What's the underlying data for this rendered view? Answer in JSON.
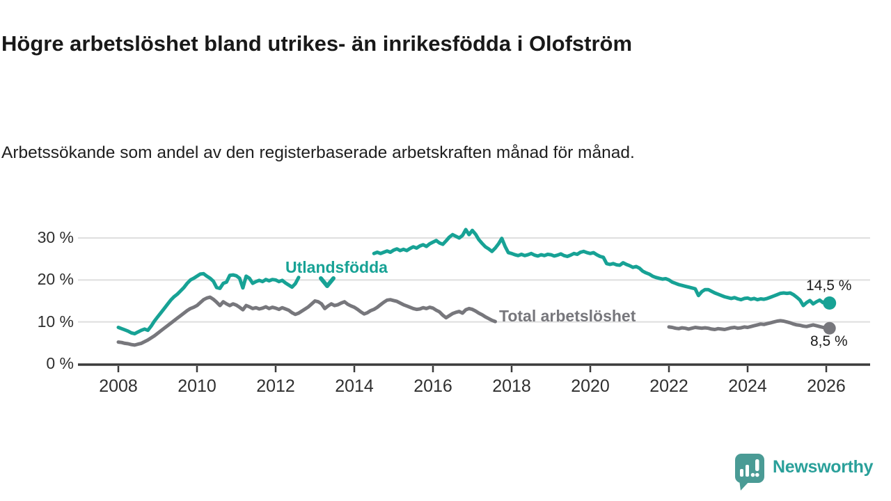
{
  "header": {
    "title": "Högre arbetslöshet bland utrikes- än inrikesfödda i Olofström",
    "subtitle": "Arbetssökande som andel av den registerbaserade arbetskraften månad för månad."
  },
  "colors": {
    "series_foreign": "#17a295",
    "series_total": "#77777c",
    "grid": "#dedede",
    "axis": "#3b3b3b",
    "tick_text": "#2f2f2f",
    "title_text": "#191919",
    "logo_icon": "#4a9b95",
    "logo_text": "#2aa09a"
  },
  "logo": {
    "text": "Newsworthy",
    "icon": "speech-bubble-bar-chart"
  },
  "chart_data": {
    "type": "line",
    "title": "Högre arbetslöshet bland utrikes- än inrikesfödda i Olofström",
    "subtitle": "Arbetssökande som andel av den registerbaserade arbetskraften månad för månad.",
    "xlabel": "",
    "ylabel": "",
    "grid": "horizontal",
    "legend_position": "inline-labels",
    "ylim": [
      0,
      33
    ],
    "xlim": [
      2007.8,
      2027.3
    ],
    "x_unit": "monthly",
    "x_start": 2008.0,
    "x_step": 0.0833333,
    "y_ticks": [
      {
        "value": 30,
        "label": "30 %"
      },
      {
        "value": 20,
        "label": "20 %"
      },
      {
        "value": 10,
        "label": "10 %"
      },
      {
        "value": 0,
        "label": "0 %"
      }
    ],
    "x_ticks": [
      {
        "year": 2008,
        "label": "2008"
      },
      {
        "year": 2010,
        "label": "2010"
      },
      {
        "year": 2012,
        "label": "2012"
      },
      {
        "year": 2014,
        "label": "2014"
      },
      {
        "year": 2016,
        "label": "2016"
      },
      {
        "year": 2018,
        "label": "2018"
      },
      {
        "year": 2020,
        "label": "2020"
      },
      {
        "year": 2022,
        "label": "2022"
      },
      {
        "year": 2024,
        "label": "2024"
      },
      {
        "year": 2026,
        "label": "2026"
      }
    ],
    "series": [
      {
        "name": "Utlandsfödda",
        "color": "#17a295",
        "end_label": "14,5 %",
        "end_value": 14.5,
        "dot_radius": 9.5,
        "line_width": 5,
        "values": [
          8.7,
          8.4,
          8.1,
          7.8,
          7.4,
          7.2,
          7.6,
          8.0,
          8.3,
          8.0,
          9.0,
          10.2,
          11.2,
          12.2,
          13.2,
          14.2,
          15.2,
          16.0,
          16.6,
          17.4,
          18.2,
          19.2,
          20.0,
          20.4,
          20.9,
          21.4,
          21.5,
          20.9,
          20.4,
          19.7,
          18.2,
          18.0,
          19.2,
          19.5,
          21.1,
          21.2,
          21.0,
          20.4,
          18.1,
          20.9,
          20.4,
          19.2,
          19.6,
          19.9,
          19.6,
          20.1,
          19.8,
          20.1,
          20.0,
          19.6,
          19.9,
          19.3,
          18.8,
          18.3,
          19.1,
          20.6,
          null,
          null,
          null,
          null,
          null,
          null,
          null,
          null,
          null,
          null,
          null,
          null,
          null,
          null,
          null,
          null,
          null,
          null,
          null,
          null,
          null,
          null,
          26.3,
          26.6,
          26.3,
          26.6,
          26.9,
          26.6,
          27.1,
          27.4,
          27.0,
          27.3,
          27.0,
          27.5,
          27.9,
          27.6,
          28.1,
          28.4,
          28.0,
          28.6,
          29.0,
          29.4,
          28.8,
          28.5,
          29.3,
          30.2,
          30.8,
          30.4,
          30.0,
          30.6,
          32.0,
          30.8,
          31.8,
          30.9,
          29.6,
          28.7,
          27.9,
          27.4,
          26.8,
          27.6,
          28.6,
          29.9,
          28.0,
          26.5,
          26.3,
          26.0,
          25.8,
          26.1,
          25.8,
          26.0,
          26.3,
          25.9,
          25.7,
          26.0,
          25.8,
          26.1,
          26.0,
          25.7,
          25.9,
          26.2,
          25.8,
          25.6,
          25.9,
          26.3,
          26.1,
          26.6,
          26.8,
          26.5,
          26.3,
          26.5,
          26.0,
          25.6,
          25.4,
          23.9,
          23.7,
          23.9,
          23.6,
          23.5,
          24.1,
          23.7,
          23.4,
          23.0,
          23.2,
          22.8,
          22.1,
          21.7,
          21.4,
          20.9,
          20.6,
          20.4,
          20.2,
          20.3,
          20.0,
          19.5,
          19.2,
          18.9,
          18.7,
          18.5,
          18.3,
          18.1,
          17.9,
          16.3,
          17.2,
          17.7,
          17.7,
          17.3,
          16.9,
          16.6,
          16.3,
          16.0,
          15.8,
          15.6,
          15.8,
          15.5,
          15.3,
          15.6,
          15.7,
          15.4,
          15.6,
          15.3,
          15.5,
          15.4,
          15.6,
          15.9,
          16.2,
          16.5,
          16.8,
          16.9,
          16.8,
          16.9,
          16.5,
          15.9,
          15.2,
          13.9,
          14.6,
          15.1,
          14.3,
          14.8,
          15.2,
          14.6,
          15.0,
          14.5
        ]
      },
      {
        "name": "Total arbetslöshet",
        "color": "#77777c",
        "end_label": "8,5 %",
        "end_value": 8.5,
        "dot_radius": 9,
        "line_width": 5,
        "values": [
          5.2,
          5.1,
          4.9,
          4.8,
          4.6,
          4.5,
          4.7,
          4.9,
          5.3,
          5.7,
          6.2,
          6.7,
          7.3,
          7.9,
          8.5,
          9.1,
          9.7,
          10.3,
          10.9,
          11.5,
          12.1,
          12.7,
          13.2,
          13.5,
          13.9,
          14.6,
          15.3,
          15.7,
          15.9,
          15.4,
          14.7,
          13.9,
          14.8,
          14.3,
          13.9,
          14.3,
          14.0,
          13.5,
          12.9,
          13.9,
          13.6,
          13.2,
          13.4,
          13.1,
          13.3,
          13.6,
          13.2,
          13.5,
          13.3,
          13.0,
          13.4,
          13.1,
          12.8,
          12.2,
          11.8,
          12.1,
          12.6,
          13.1,
          13.6,
          14.3,
          15.0,
          14.8,
          14.3,
          13.2,
          13.8,
          14.3,
          13.9,
          14.1,
          14.5,
          14.8,
          14.2,
          13.8,
          13.5,
          13.0,
          12.4,
          11.9,
          12.2,
          12.7,
          13.0,
          13.5,
          14.1,
          14.7,
          15.2,
          15.3,
          15.1,
          14.9,
          14.5,
          14.1,
          13.8,
          13.5,
          13.2,
          13.0,
          13.1,
          13.4,
          13.2,
          13.5,
          13.3,
          12.8,
          12.4,
          11.6,
          11.0,
          11.5,
          12.0,
          12.3,
          12.5,
          12.1,
          12.9,
          13.2,
          13.0,
          12.6,
          12.1,
          11.7,
          11.2,
          10.8,
          10.4,
          10.1,
          null,
          null,
          null,
          null,
          null,
          null,
          null,
          null,
          null,
          null,
          null,
          null,
          null,
          null,
          null,
          null,
          null,
          null,
          null,
          null,
          null,
          null,
          null,
          null,
          null,
          null,
          null,
          null,
          null,
          null,
          null,
          null,
          null,
          null,
          null,
          null,
          null,
          null,
          null,
          null,
          null,
          null,
          null,
          null,
          null,
          null,
          null,
          null,
          null,
          null,
          null,
          null,
          8.8,
          8.7,
          8.5,
          8.4,
          8.6,
          8.5,
          8.3,
          8.5,
          8.7,
          8.6,
          8.5,
          8.6,
          8.5,
          8.3,
          8.2,
          8.4,
          8.3,
          8.2,
          8.4,
          8.6,
          8.7,
          8.5,
          8.6,
          8.8,
          8.7,
          8.9,
          9.1,
          9.3,
          9.5,
          9.4,
          9.6,
          9.8,
          10.0,
          10.2,
          10.3,
          10.2,
          10.0,
          9.8,
          9.5,
          9.3,
          9.2,
          9.0,
          8.9,
          9.1,
          9.3,
          9.1,
          8.9,
          8.7,
          8.6,
          8.5
        ]
      }
    ]
  }
}
